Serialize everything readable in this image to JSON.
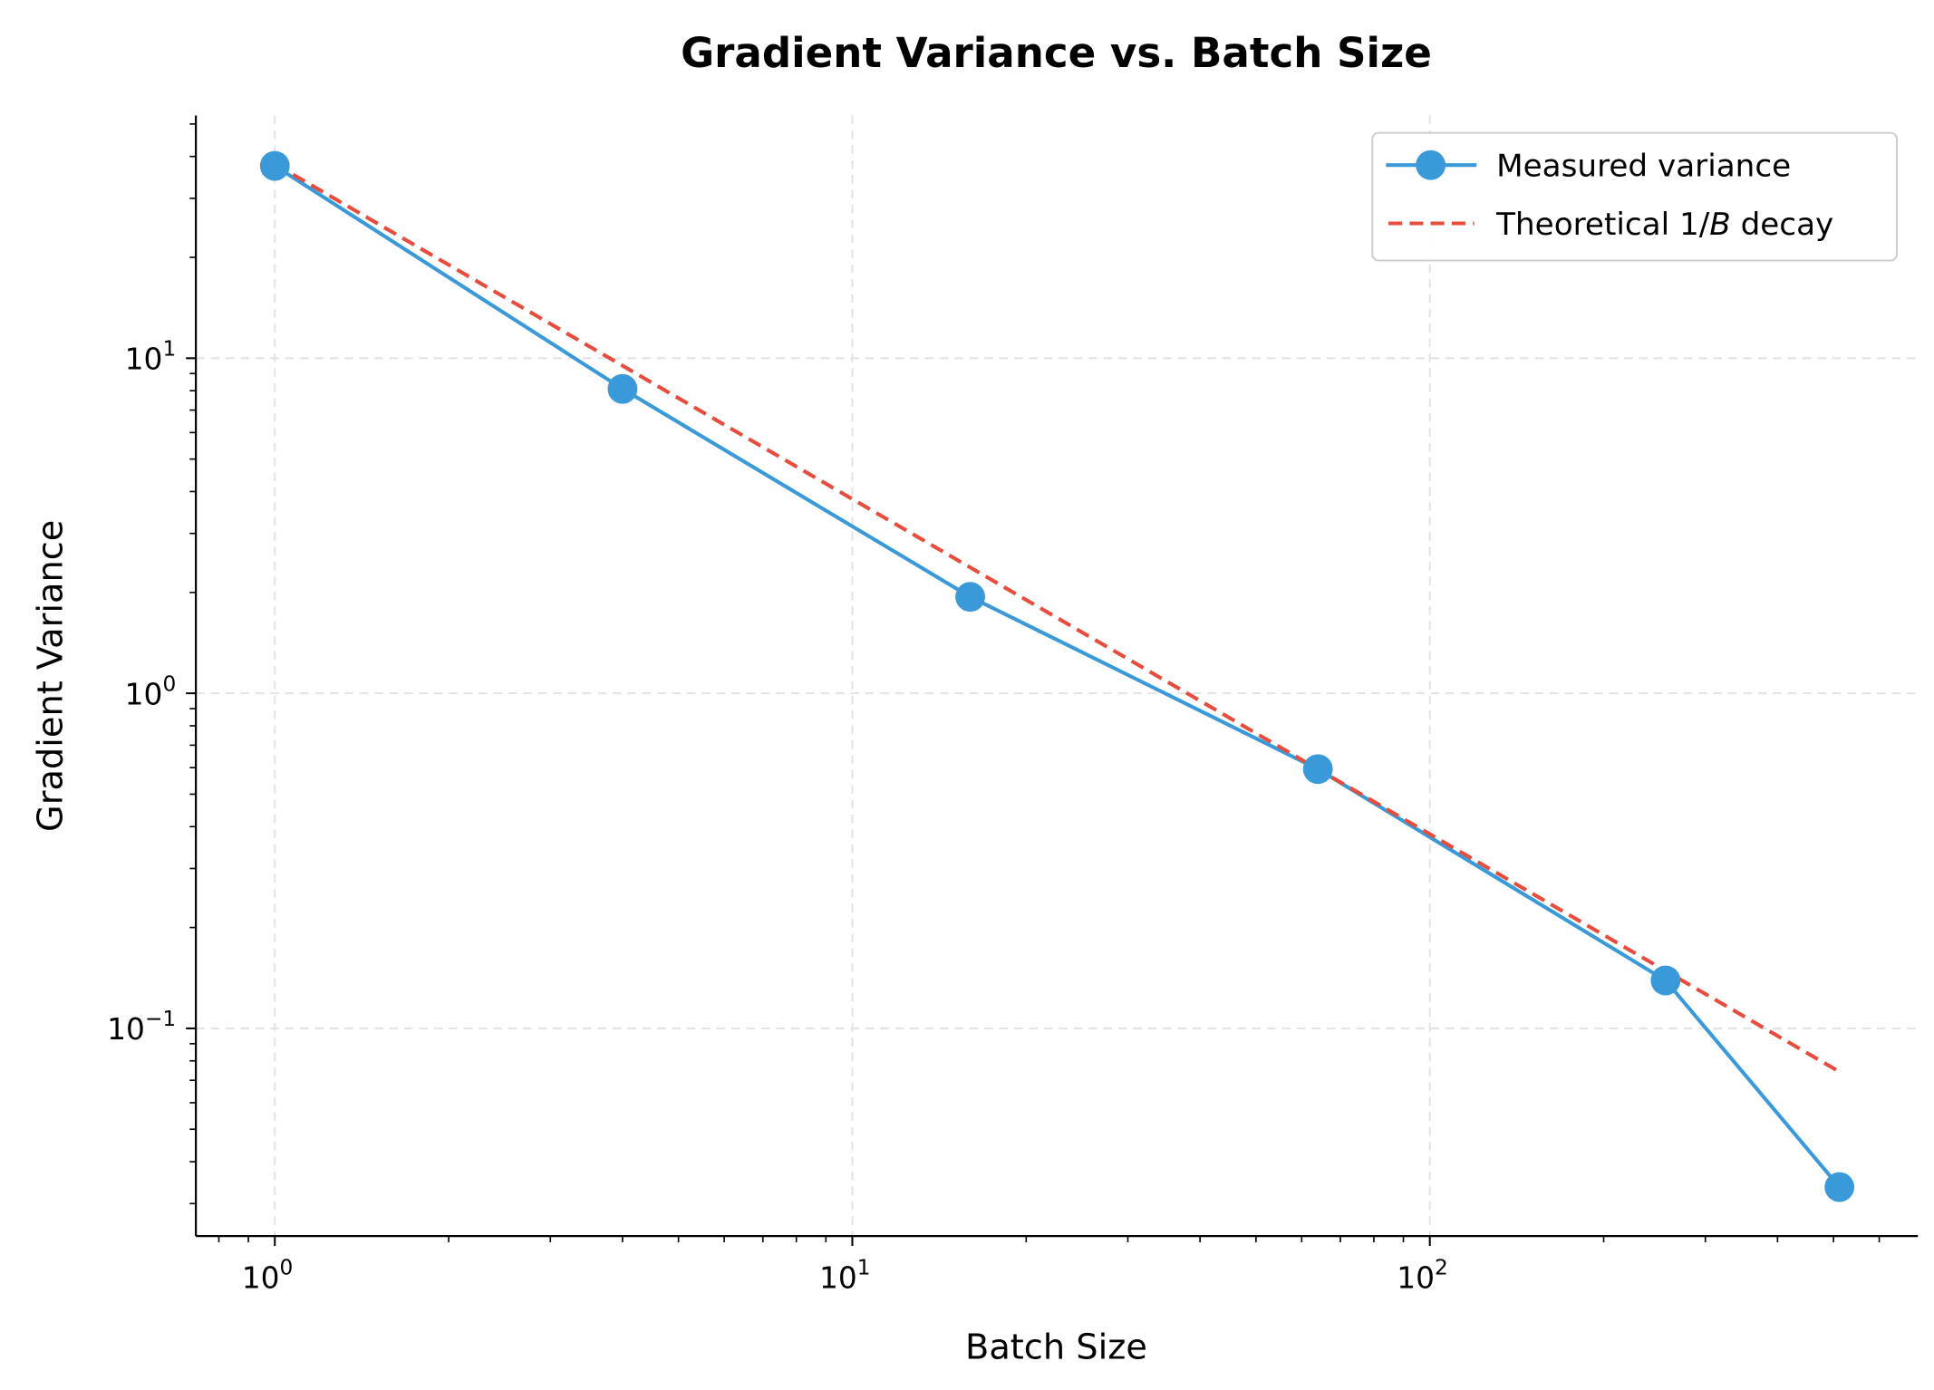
{
  "chart_data": {
    "type": "line",
    "title": "Gradient Variance vs. Batch Size",
    "xlabel": "Batch Size",
    "ylabel": "Gradient Variance",
    "xscale": "log",
    "yscale": "log",
    "xlim": [
      0.73,
      700
    ],
    "ylim": [
      0.024,
      53
    ],
    "grid": true,
    "legend_placement": "top-right",
    "x_ticks": [
      {
        "base": "10",
        "exp": "0",
        "value": 1
      },
      {
        "base": "10",
        "exp": "1",
        "value": 10
      },
      {
        "base": "10",
        "exp": "2",
        "value": 100
      }
    ],
    "y_ticks": [
      {
        "base": "10",
        "exp": "1",
        "value": 10
      },
      {
        "base": "10",
        "exp": "0",
        "value": 1
      },
      {
        "base": "10",
        "exp": "−1",
        "value": 0.1
      }
    ],
    "series": [
      {
        "name": "Measured variance",
        "color": "#3a9ad9",
        "style": "solid-marker",
        "x": [
          1,
          4,
          16,
          64,
          256,
          512
        ],
        "y": [
          37.5,
          8.1,
          1.94,
          0.594,
          0.139,
          0.0336
        ]
      },
      {
        "name_parts": [
          "Theoretical 1/",
          "B",
          " decay"
        ],
        "name": "Theoretical 1/B decay",
        "color": "#e74c3c",
        "style": "dashed",
        "x": [
          1,
          512
        ],
        "coef": 38
      }
    ]
  }
}
